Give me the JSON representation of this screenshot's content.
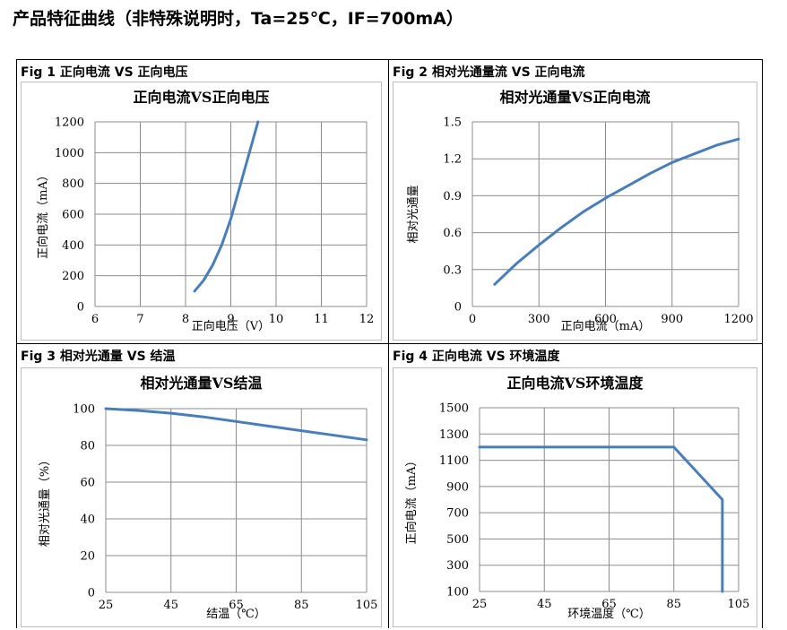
{
  "page": {
    "title": "产品特征曲线（非特殊说明时，Ta=25℃，IF=700mA）"
  },
  "figures": [
    {
      "caption": "Fig 1  正向电流  VS  正向电压"
    },
    {
      "caption": "Fig 2  相对光通量流  VS  正向电流"
    },
    {
      "caption": "Fig 3  相对光通量  VS  结温"
    },
    {
      "caption": "Fig 4  正向电流  VS  环境温度"
    }
  ],
  "chart_data": [
    {
      "type": "line",
      "title": "正向电流VS正向电压",
      "xlabel": "正向电压（V）",
      "ylabel": "正向电流（mA）",
      "xlim": [
        6,
        12
      ],
      "ylim": [
        0,
        1200
      ],
      "xticks": [
        6,
        7,
        8,
        9,
        10,
        11,
        12
      ],
      "yticks": [
        0,
        200,
        400,
        600,
        800,
        1000,
        1200
      ],
      "grid": true,
      "color": "#4a7ebb",
      "x": [
        8.2,
        8.4,
        8.6,
        8.8,
        9.0,
        9.2,
        9.4,
        9.6
      ],
      "y": [
        100,
        170,
        270,
        400,
        570,
        780,
        990,
        1200
      ]
    },
    {
      "type": "line",
      "title": "相对光通量VS正向电流",
      "xlabel": "正向电流（mA）",
      "ylabel": "相对光通量",
      "xlim": [
        0,
        1200
      ],
      "ylim": [
        0,
        1.5
      ],
      "xticks": [
        0,
        300,
        600,
        900,
        1200
      ],
      "yticks": [
        0,
        0.3,
        0.6,
        0.9,
        1.2,
        1.5
      ],
      "grid": true,
      "color": "#4a7ebb",
      "x": [
        100,
        200,
        300,
        400,
        500,
        600,
        700,
        800,
        900,
        1000,
        1100,
        1200
      ],
      "y": [
        0.18,
        0.35,
        0.5,
        0.64,
        0.77,
        0.88,
        0.98,
        1.08,
        1.17,
        1.24,
        1.31,
        1.36
      ]
    },
    {
      "type": "line",
      "title": "相对光通量VS结温",
      "xlabel": "结温（℃）",
      "ylabel": "相对光通量（%）",
      "xlim": [
        25,
        105
      ],
      "ylim": [
        0,
        100
      ],
      "xticks": [
        25,
        45,
        65,
        85,
        105
      ],
      "yticks": [
        0,
        20,
        40,
        60,
        80,
        100
      ],
      "grid": true,
      "color": "#4a7ebb",
      "x": [
        25,
        35,
        45,
        55,
        65,
        75,
        85,
        95,
        105
      ],
      "y": [
        100,
        99,
        97.5,
        95.5,
        93,
        90.5,
        88,
        85.5,
        83
      ]
    },
    {
      "type": "line",
      "title": "正向电流VS环境温度",
      "xlabel": "环境温度（℃）",
      "ylabel": "正向电流（mA）",
      "xlim": [
        25,
        105
      ],
      "ylim": [
        100,
        1500
      ],
      "xticks": [
        25,
        45,
        65,
        85,
        105
      ],
      "yticks": [
        100,
        300,
        500,
        700,
        900,
        1100,
        1300,
        1500
      ],
      "grid": true,
      "color": "#4a7ebb",
      "x": [
        25,
        85,
        100,
        100
      ],
      "y": [
        1200,
        1200,
        800,
        100
      ]
    }
  ]
}
